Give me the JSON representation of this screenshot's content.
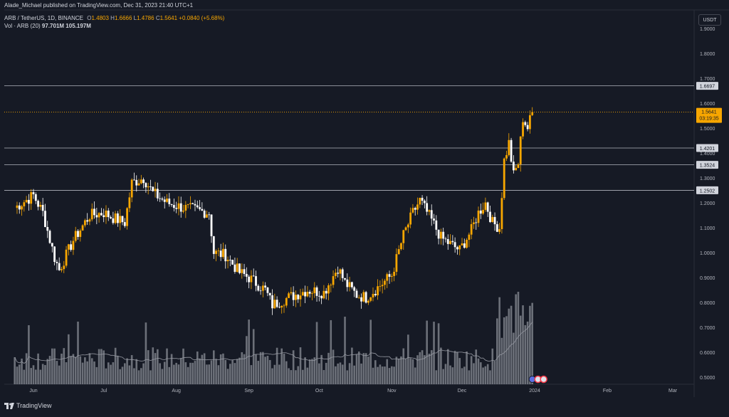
{
  "header": {
    "published": "Alade_Michael published on TradingView.com, Dec 31, 2023 21:40 UTC+1",
    "symbol": "ARB / TetherUS, 1D, BINANCE",
    "open_label": "O",
    "open": "1.4803",
    "high_label": "H",
    "high": "1.6666",
    "low_label": "L",
    "low": "1.4786",
    "close_label": "C",
    "close": "1.5641",
    "change": "+0.0840 (+5.68%)",
    "vol_label": "Vol · ARB (20)",
    "vol_value": "97.701M",
    "vol_ma": "105.197M"
  },
  "currency_button": "USDT",
  "footer": {
    "brand": "TradingView"
  },
  "colors": {
    "background": "#161a25",
    "up": "#f7a600",
    "down": "#ffffff",
    "volume_bar": "#8a8d96",
    "level_line": "#b2b5be",
    "current_price": "#f7a600"
  },
  "chart_data": {
    "type": "candlestick",
    "symbol": "ARB / TetherUS",
    "interval": "1D",
    "exchange": "BINANCE",
    "ylim": [
      0.46,
      1.95
    ],
    "y_ticks": [
      "0.5000",
      "0.6000",
      "0.7000",
      "0.8000",
      "0.9000",
      "1.0000",
      "1.1000",
      "1.2000",
      "1.3000",
      "1.4000",
      "1.5000",
      "1.6000",
      "1.7000",
      "1.8000",
      "1.9000"
    ],
    "x_ticks": [
      "Jun",
      "Jul",
      "Aug",
      "Sep",
      "Oct",
      "Nov",
      "Dec",
      "2024",
      "Feb",
      "Mar"
    ],
    "horizontal_levels": [
      {
        "label": "1.6697",
        "value": 1.6697
      },
      {
        "label": "1.4201",
        "value": 1.4201
      },
      {
        "label": "1.3524",
        "value": 1.3524
      },
      {
        "label": "1.2502",
        "value": 1.2502
      }
    ],
    "current_price": {
      "label": "1.5641",
      "value": 1.5641,
      "countdown": "03:19:35"
    },
    "close_path": [
      [
        "May 24",
        1.18
      ],
      [
        "Jun 01",
        1.23
      ],
      [
        "Jun 05",
        1.16
      ],
      [
        "Jun 10",
        0.98
      ],
      [
        "Jun 12",
        0.93
      ],
      [
        "Jun 18",
        1.05
      ],
      [
        "Jun 25",
        1.15
      ],
      [
        "Jul 01",
        1.16
      ],
      [
        "Jul 05",
        1.14
      ],
      [
        "Jul 10",
        1.12
      ],
      [
        "Jul 13",
        1.28
      ],
      [
        "Jul 18",
        1.3
      ],
      [
        "Jul 22",
        1.24
      ],
      [
        "Jul 28",
        1.2
      ],
      [
        "Aug 04",
        1.18
      ],
      [
        "Aug 10",
        1.17
      ],
      [
        "Aug 15",
        1.16
      ],
      [
        "Aug 17",
        1.0
      ],
      [
        "Aug 22",
        0.99
      ],
      [
        "Aug 28",
        0.92
      ],
      [
        "Sep 01",
        0.9
      ],
      [
        "Sep 08",
        0.85
      ],
      [
        "Sep 11",
        0.79
      ],
      [
        "Sep 18",
        0.82
      ],
      [
        "Sep 26",
        0.85
      ],
      [
        "Oct 03",
        0.84
      ],
      [
        "Oct 09",
        0.94
      ],
      [
        "Oct 12",
        0.88
      ],
      [
        "Oct 17",
        0.83
      ],
      [
        "Oct 21",
        0.82
      ],
      [
        "Oct 26",
        0.86
      ],
      [
        "Nov 01",
        0.91
      ],
      [
        "Nov 06",
        1.07
      ],
      [
        "Nov 10",
        1.16
      ],
      [
        "Nov 13",
        1.21
      ],
      [
        "Nov 18",
        1.13
      ],
      [
        "Nov 22",
        1.06
      ],
      [
        "Nov 25",
        1.04
      ],
      [
        "Nov 30",
        1.01
      ],
      [
        "Dec 05",
        1.09
      ],
      [
        "Dec 08",
        1.16
      ],
      [
        "Dec 11",
        1.2
      ],
      [
        "Dec 14",
        1.12
      ],
      [
        "Dec 17",
        1.1
      ],
      [
        "Dec 19",
        1.37
      ],
      [
        "Dec 21",
        1.44
      ],
      [
        "Dec 23",
        1.31
      ],
      [
        "Dec 25",
        1.36
      ],
      [
        "Dec 27",
        1.54
      ],
      [
        "Dec 29",
        1.5
      ],
      [
        "Dec 31",
        1.5641
      ]
    ],
    "volume_ma_label": "Vol · ARB (20)"
  }
}
